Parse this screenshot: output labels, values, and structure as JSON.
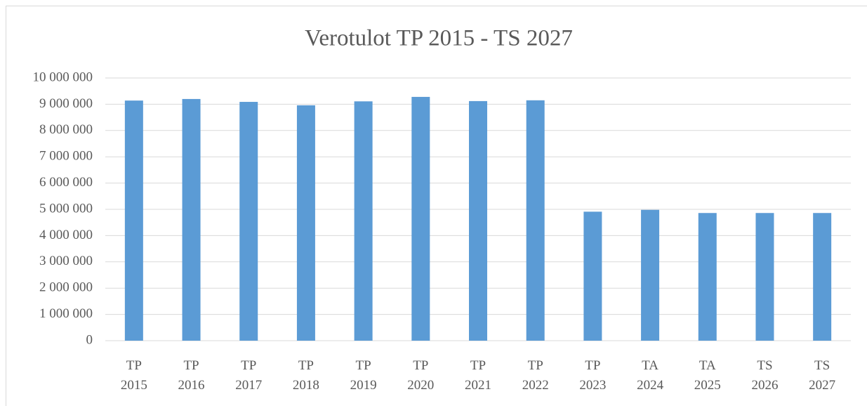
{
  "chart_data": {
    "type": "bar",
    "title": "Verotulot TP 2015 - TS 2027",
    "categories": [
      "TP 2015",
      "TP 2016",
      "TP 2017",
      "TP 2018",
      "TP 2019",
      "TP 2020",
      "TP 2021",
      "TP 2022",
      "TP 2023",
      "TA 2024",
      "TA 2025",
      "TS 2026",
      "TS 2027"
    ],
    "values": [
      9140000,
      9200000,
      9090000,
      8960000,
      9110000,
      9280000,
      9120000,
      9150000,
      4910000,
      4980000,
      4860000,
      4860000,
      4860000
    ],
    "color": "#5b9bd5",
    "ylim": [
      0,
      10000000
    ],
    "yticks": [
      0,
      {
        "value": 1000000,
        "label": "1 000 000"
      },
      {
        "value": 2000000,
        "label": "2 000 000"
      },
      {
        "value": 3000000,
        "label": "3 000 000"
      },
      {
        "value": 4000000,
        "label": "4 000 000"
      },
      {
        "value": 5000000,
        "label": "5 000 000"
      },
      {
        "value": 6000000,
        "label": "6 000 000"
      },
      {
        "value": 7000000,
        "label": "7 000 000"
      },
      {
        "value": 8000000,
        "label": "8 000 000"
      },
      {
        "value": 9000000,
        "label": "9 000 000"
      },
      {
        "value": 10000000,
        "label": "10 000 000"
      }
    ],
    "grid": true
  }
}
